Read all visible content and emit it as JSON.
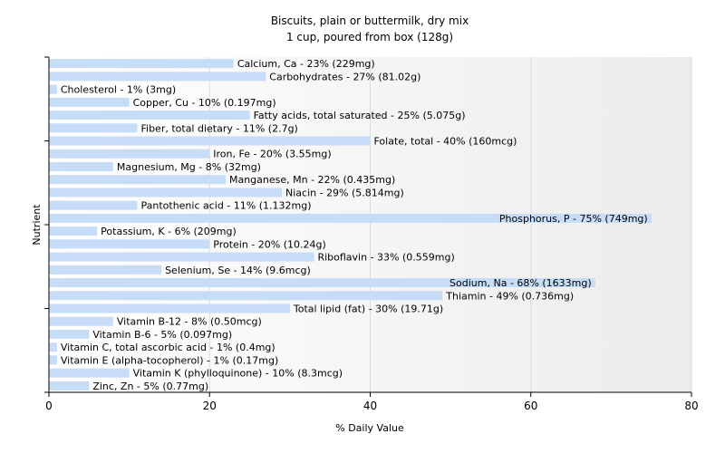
{
  "chart_data": {
    "type": "bar",
    "orientation": "horizontal",
    "title": "Biscuits, plain or buttermilk, dry mix",
    "subtitle": "1 cup, poured from box (128g)",
    "xlabel": "% Daily Value",
    "ylabel": "Nutrient",
    "xlim": [
      0,
      80
    ],
    "xticks": [
      "0",
      "20",
      "40",
      "60",
      "80"
    ],
    "grid": true,
    "bar_color": "#c6dcf7",
    "categories": [
      "Calcium, Ca",
      "Carbohydrates",
      "Cholesterol",
      "Copper, Cu",
      "Fatty acids, total saturated",
      "Fiber, total dietary",
      "Folate, total",
      "Iron, Fe",
      "Magnesium, Mg",
      "Manganese, Mn",
      "Niacin",
      "Pantothenic acid",
      "Phosphorus, P",
      "Potassium, K",
      "Protein",
      "Riboflavin",
      "Selenium, Se",
      "Sodium, Na",
      "Thiamin",
      "Total lipid (fat)",
      "Vitamin B-12",
      "Vitamin B-6",
      "Vitamin C, total ascorbic acid",
      "Vitamin E (alpha-tocopherol)",
      "Vitamin K (phylloquinone)",
      "Zinc, Zn"
    ],
    "values": [
      23,
      27,
      1,
      10,
      25,
      11,
      40,
      20,
      8,
      22,
      29,
      11,
      75,
      6,
      20,
      33,
      14,
      68,
      49,
      30,
      8,
      5,
      1,
      1,
      10,
      5
    ],
    "labels": [
      "Calcium, Ca - 23% (229mg)",
      "Carbohydrates - 27% (81.02g)",
      "Cholesterol - 1% (3mg)",
      "Copper, Cu - 10% (0.197mg)",
      "Fatty acids, total saturated - 25% (5.075g)",
      "Fiber, total dietary - 11% (2.7g)",
      "Folate, total - 40% (160mcg)",
      "Iron, Fe - 20% (3.55mg)",
      "Magnesium, Mg - 8% (32mg)",
      "Manganese, Mn - 22% (0.435mg)",
      "Niacin - 29% (5.814mg)",
      "Pantothenic acid - 11% (1.132mg)",
      "Phosphorus, P - 75% (749mg)",
      "Potassium, K - 6% (209mg)",
      "Protein - 20% (10.24g)",
      "Riboflavin - 33% (0.559mg)",
      "Selenium, Se - 14% (9.6mcg)",
      "Sodium, Na - 68% (1633mg)",
      "Thiamin - 49% (0.736mg)",
      "Total lipid (fat) - 30% (19.71g)",
      "Vitamin B-12 - 8% (0.50mcg)",
      "Vitamin B-6 - 5% (0.097mg)",
      "Vitamin C, total ascorbic acid - 1% (0.4mg)",
      "Vitamin E (alpha-tocopherol) - 1% (0.17mg)",
      "Vitamin K (phylloquinone) - 10% (8.3mcg)",
      "Zinc, Zn - 5% (0.77mg)"
    ]
  }
}
